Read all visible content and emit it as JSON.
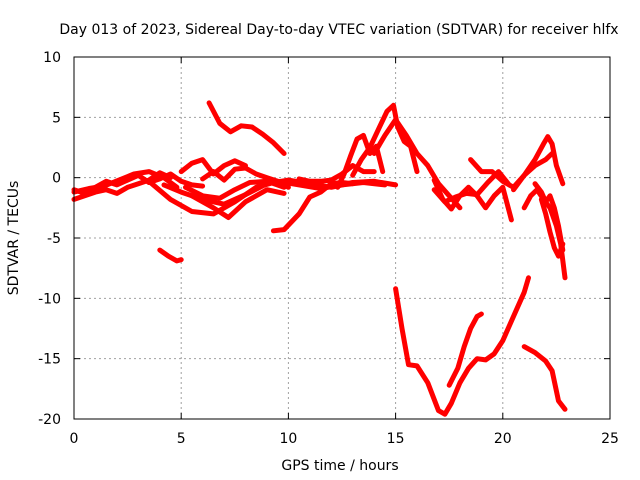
{
  "chart_data": {
    "type": "line",
    "title": "Day 013 of 2023, Sidereal Day-to-day VTEC variation (SDTVAR) for receiver hlfx",
    "xlabel": "GPS time / hours",
    "ylabel": "SDTVAR / TECUs",
    "xlim": [
      0,
      25
    ],
    "ylim": [
      -20,
      10
    ],
    "xticks": [
      0,
      5,
      10,
      15,
      20,
      25
    ],
    "yticks": [
      -20,
      -15,
      -10,
      -5,
      0,
      5,
      10
    ],
    "grid": true,
    "marker": "plus",
    "color": "#ff0000",
    "series": [
      {
        "x": [
          0,
          0.5,
          1,
          1.5,
          2,
          2.5,
          3,
          3.5,
          4,
          4.5,
          5,
          5.5,
          6
        ],
        "y": [
          -1.0,
          -1.3,
          -0.8,
          -0.3,
          -0.6,
          -0.2,
          0.2,
          -0.4,
          -0.1,
          0.3,
          -0.3,
          -0.6,
          -0.7
        ]
      },
      {
        "x": [
          0,
          0.5,
          1,
          1.5,
          2,
          2.5,
          3,
          3.5,
          4,
          4.5
        ],
        "y": [
          -1.8,
          -1.5,
          -1.2,
          -1.0,
          -1.3,
          -0.8,
          -0.5,
          -0.2,
          0.4,
          0.0
        ]
      },
      {
        "x": [
          0,
          0.7,
          1.4,
          2.1,
          2.8,
          3.5,
          4.2,
          4.8
        ],
        "y": [
          -1.2,
          -0.9,
          -0.7,
          -0.2,
          0.3,
          0.5,
          0.0,
          -0.8
        ]
      },
      {
        "x": [
          3.5,
          4.5,
          5.5,
          6.5,
          7.5,
          8.5,
          9.5,
          10.5,
          11.5,
          12.5,
          13.5,
          14.5
        ],
        "y": [
          -0.3,
          -1.8,
          -2.8,
          -3.0,
          -2.0,
          -0.8,
          -0.3,
          -0.6,
          -0.9,
          -0.6,
          -0.4,
          -0.6
        ]
      },
      {
        "x": [
          4.2,
          5,
          6,
          7,
          8,
          9,
          10,
          11,
          12,
          13,
          14,
          15
        ],
        "y": [
          -0.6,
          -1.2,
          -1.8,
          -2.2,
          -1.4,
          -0.5,
          -0.2,
          -0.5,
          -0.8,
          -0.4,
          -0.3,
          -0.6
        ]
      },
      {
        "x": [
          5.2,
          6,
          6.8,
          7.5,
          8.2,
          9,
          9.8
        ],
        "y": [
          -0.8,
          -1.5,
          -1.7,
          -1.0,
          -0.4,
          -0.3,
          -0.8
        ]
      },
      {
        "x": [
          5.5,
          6.5,
          7.2,
          8,
          9,
          9.8
        ],
        "y": [
          -1.5,
          -2.5,
          -3.3,
          -2.0,
          -1.0,
          -1.3
        ]
      },
      {
        "x": [
          6,
          6.5,
          7,
          7.5,
          8,
          8.5,
          9,
          9.5,
          10
        ],
        "y": [
          -0.1,
          0.5,
          -0.2,
          0.7,
          0.8,
          0.3,
          0.0,
          -0.3,
          -0.8
        ]
      },
      {
        "x": [
          5,
          5.5,
          6,
          6.5,
          7,
          7.5,
          8
        ],
        "y": [
          0.5,
          1.2,
          1.5,
          0.3,
          1.0,
          1.4,
          1.0
        ]
      },
      {
        "x": [
          6.3,
          6.8,
          7.3,
          7.8,
          8.3,
          8.8,
          9.3,
          9.8
        ],
        "y": [
          6.2,
          4.5,
          3.8,
          4.3,
          4.2,
          3.6,
          2.9,
          2.0
        ]
      },
      {
        "x": [
          4.0,
          4.4,
          4.8,
          5.0
        ],
        "y": [
          -6.0,
          -6.5,
          -6.9,
          -6.8
        ]
      },
      {
        "x": [
          9.3,
          9.8,
          10.5,
          11,
          11.5,
          12,
          12.5,
          13
        ],
        "y": [
          -4.4,
          -4.3,
          -3.0,
          -1.6,
          -1.2,
          -0.5,
          -0.4,
          -0.5
        ]
      },
      {
        "x": [
          10.5,
          11,
          11.5,
          12,
          12.5,
          13,
          13.5,
          14
        ],
        "y": [
          -0.1,
          -0.3,
          -0.3,
          -0.2,
          0.3,
          1.0,
          0.5,
          0.5
        ]
      },
      {
        "x": [
          12.3,
          12.6,
          12.9,
          13.2,
          13.5,
          13.8,
          14.1,
          14.4
        ],
        "y": [
          -0.8,
          0.3,
          1.8,
          3.2,
          3.5,
          2.0,
          2.6,
          0.5
        ]
      },
      {
        "x": [
          13,
          13.4,
          13.8,
          14.2,
          14.6,
          14.9,
          15.1,
          15.4,
          15.7,
          16.0
        ],
        "y": [
          0.2,
          1.5,
          2.5,
          4.0,
          5.5,
          6.0,
          4.2,
          3.0,
          2.6,
          0.5
        ]
      },
      {
        "x": [
          14.0,
          14.5,
          15.0,
          15.5,
          16.0,
          16.5,
          17.0,
          17.5,
          18.0
        ],
        "y": [
          2.0,
          3.5,
          4.8,
          3.5,
          2.0,
          1.0,
          -0.5,
          -1.5,
          -2.5
        ]
      },
      {
        "x": [
          16.8,
          17.2,
          17.6,
          18.0,
          18.4,
          18.8,
          19.2,
          19.6,
          20.0,
          20.4
        ],
        "y": [
          -0.2,
          -1.8,
          -2.6,
          -1.5,
          -0.8,
          -1.5,
          -2.5,
          -1.5,
          -0.8,
          -3.5
        ]
      },
      {
        "x": [
          16.8,
          17.3,
          17.8,
          18.3,
          18.8,
          19.3,
          19.8,
          20.3
        ],
        "y": [
          -1.0,
          -2.0,
          -1.6,
          -1.3,
          -1.4,
          -0.4,
          0.5,
          -0.6
        ]
      },
      {
        "x": [
          18.5,
          19.0,
          19.5,
          20.0,
          20.5,
          21.0,
          21.5,
          22.0,
          22.3
        ],
        "y": [
          1.5,
          0.5,
          0.5,
          -0.3,
          -0.8,
          0.2,
          1.0,
          1.5,
          2.0
        ]
      },
      {
        "x": [
          20.5,
          21.0,
          21.5,
          21.9,
          22.1,
          22.3,
          22.5,
          22.8
        ],
        "y": [
          -1.0,
          0.2,
          1.5,
          2.8,
          3.4,
          2.8,
          1.0,
          -0.5
        ]
      },
      {
        "x": [
          21.0,
          21.3,
          21.6,
          21.9,
          22.2,
          22.5,
          22.7,
          22.9
        ],
        "y": [
          -2.5,
          -1.5,
          -1.0,
          -1.8,
          -2.5,
          -4.0,
          -5.5,
          -8.3
        ]
      },
      {
        "x": [
          21.5,
          21.8,
          22.0,
          22.2,
          22.4,
          22.6,
          22.8
        ],
        "y": [
          -0.5,
          -1.2,
          -2.0,
          -1.5,
          -2.5,
          -4.0,
          -6.0
        ]
      },
      {
        "x": [
          21.8,
          22.0,
          22.2,
          22.4,
          22.6,
          22.8
        ],
        "y": [
          -1.8,
          -3.0,
          -4.5,
          -5.8,
          -6.5,
          -5.5
        ]
      },
      {
        "x": [
          15.0,
          15.3,
          15.6,
          16.0,
          16.5,
          17.0,
          17.3,
          17.6,
          18.0,
          18.4,
          18.8,
          19.2,
          19.6,
          20.0,
          20.5,
          21.0,
          21.2
        ],
        "y": [
          -9.2,
          -12.5,
          -15.5,
          -15.6,
          -17.0,
          -19.3,
          -19.6,
          -18.7,
          -17.0,
          -15.8,
          -15.0,
          -15.1,
          -14.6,
          -13.5,
          -11.5,
          -9.5,
          -8.3
        ]
      },
      {
        "x": [
          17.5,
          17.9,
          18.2,
          18.5,
          18.8,
          19.0
        ],
        "y": [
          -17.2,
          -15.8,
          -14.0,
          -12.5,
          -11.5,
          -11.3
        ]
      },
      {
        "x": [
          21.0,
          21.5,
          22.0,
          22.3,
          22.6,
          22.9
        ],
        "y": [
          -14.0,
          -14.5,
          -15.2,
          -16.0,
          -18.5,
          -19.2
        ]
      }
    ]
  }
}
